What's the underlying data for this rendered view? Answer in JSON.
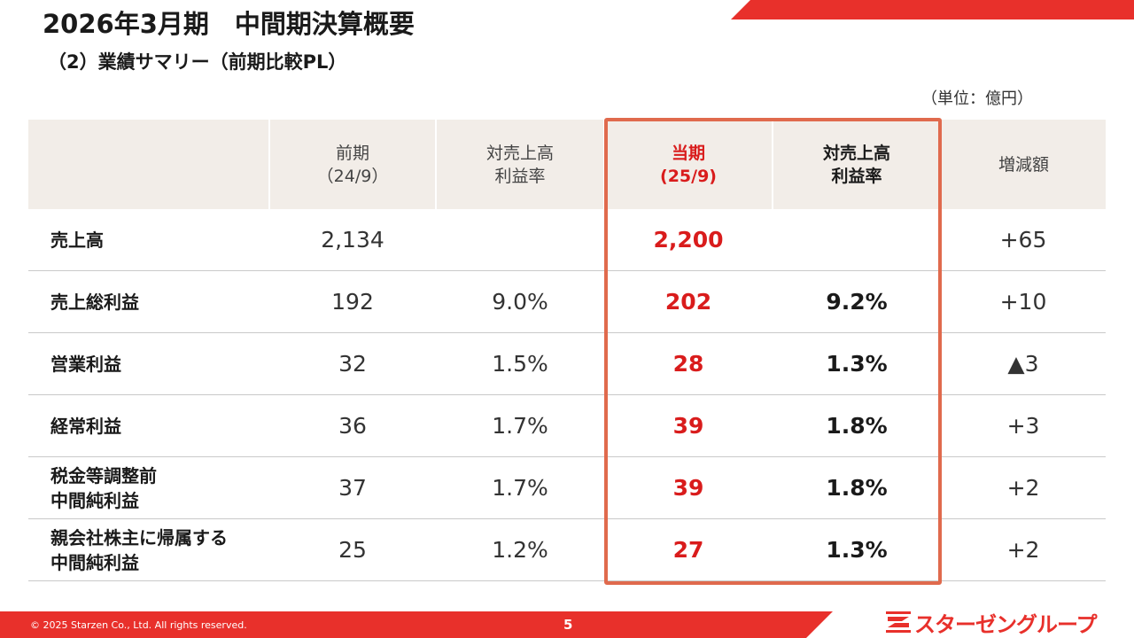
{
  "header": {
    "title": "2026年3月期　中間期決算概要",
    "subtitle": "（2）業績サマリー（前期比較PL）",
    "unit": "（単位：億円）"
  },
  "table": {
    "headers": [
      "",
      "前期\n（24/9）",
      "対売上高\n利益率",
      "当期\n(25/9)",
      "対売上高\n利益率",
      "増減額"
    ],
    "rows": [
      {
        "label": "売上高",
        "prev": "2,134",
        "prev_rate": "",
        "cur": "2,200",
        "cur_rate": "",
        "diff": "+65"
      },
      {
        "label": "売上総利益",
        "prev": "192",
        "prev_rate": "9.0%",
        "cur": "202",
        "cur_rate": "9.2%",
        "diff": "+10"
      },
      {
        "label": "営業利益",
        "prev": "32",
        "prev_rate": "1.5%",
        "cur": "28",
        "cur_rate": "1.3%",
        "diff": "▲3"
      },
      {
        "label": "経常利益",
        "prev": "36",
        "prev_rate": "1.7%",
        "cur": "39",
        "cur_rate": "1.8%",
        "diff": "+3"
      },
      {
        "label": "税金等調整前\n中間純利益",
        "prev": "37",
        "prev_rate": "1.7%",
        "cur": "39",
        "cur_rate": "1.8%",
        "diff": "+2"
      },
      {
        "label": "親会社株主に帰属する\n中間純利益",
        "prev": "25",
        "prev_rate": "1.2%",
        "cur": "27",
        "cur_rate": "1.3%",
        "diff": "+2"
      }
    ]
  },
  "footer": {
    "copyright": "© 2025 Starzen Co., Ltd. All rights reserved.",
    "page_number": "5",
    "logo_text": "スターゼングループ",
    "logo_icon": "starzen-logo-mark"
  },
  "colors": {
    "accent_red": "#e8302b",
    "current_period_red": "#d91c1c",
    "highlight_border": "#e06a4d",
    "header_bg": "#f2ede8"
  }
}
